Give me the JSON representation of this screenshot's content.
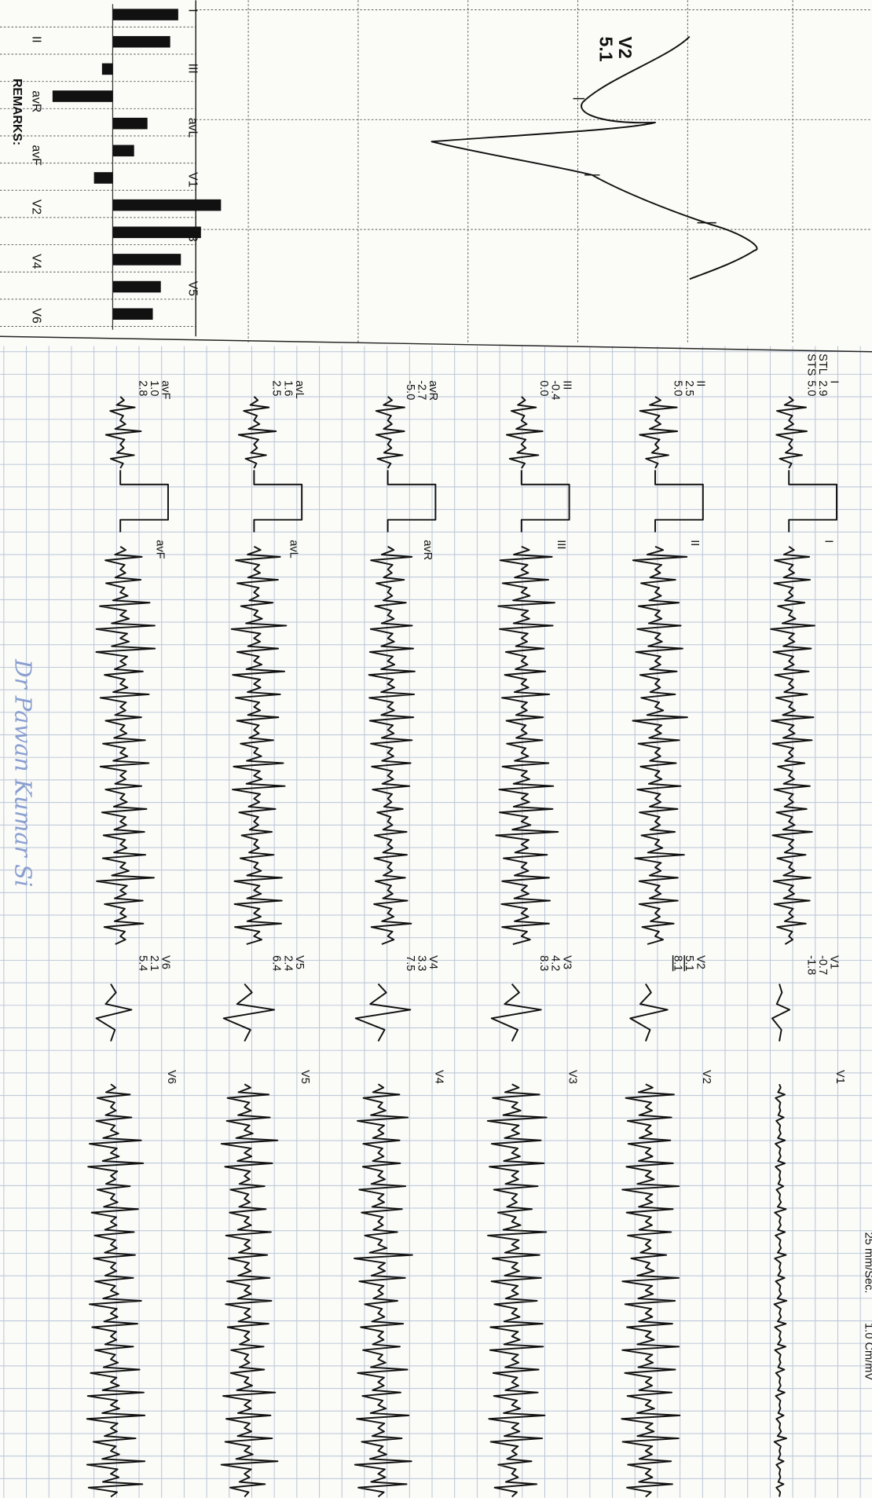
{
  "header": {
    "speed": "25 mm/Sec.",
    "gain": "1.0 Cm/mV",
    "remarks": "REMARKS:",
    "stl_label": "STL",
    "sts_label": "STS"
  },
  "zoom": {
    "lead": "V2",
    "value": "5.1"
  },
  "summary": {
    "labels": [
      "I",
      "II",
      "III",
      "avR",
      "avL",
      "avF",
      "V1",
      "V2",
      "V3",
      "V4",
      "V5",
      "V6"
    ],
    "bars": [
      4.9,
      4.3,
      -0.8,
      -4.5,
      2.6,
      1.6,
      -1.4,
      8.1,
      6.6,
      5.1,
      3.6,
      3.0
    ]
  },
  "limb_leads": [
    {
      "name": "I",
      "stl": "2.9",
      "sts": "5.0"
    },
    {
      "name": "II",
      "stl": "2.5",
      "sts": "5.0"
    },
    {
      "name": "III",
      "stl": "-0.4",
      "sts": "0.0"
    },
    {
      "name": "avR",
      "stl": "-2.7",
      "sts": "-5.0"
    },
    {
      "name": "avL",
      "stl": "1.6",
      "sts": "2.5"
    },
    {
      "name": "avF",
      "stl": "1.0",
      "sts": "2.8"
    }
  ],
  "chest_leads": [
    {
      "name": "V1",
      "stl": "-0.7",
      "sts": "-1.8"
    },
    {
      "name": "V2",
      "stl": "5.1",
      "sts": "8.1"
    },
    {
      "name": "V3",
      "stl": "4.2",
      "sts": "8.3"
    },
    {
      "name": "V4",
      "stl": "3.3",
      "sts": "7.5"
    },
    {
      "name": "V5",
      "stl": "2.4",
      "sts": "6.4"
    },
    {
      "name": "V6",
      "stl": "2.1",
      "sts": "5.4"
    }
  ],
  "signature": "Dr Pawan Kumar Si"
}
